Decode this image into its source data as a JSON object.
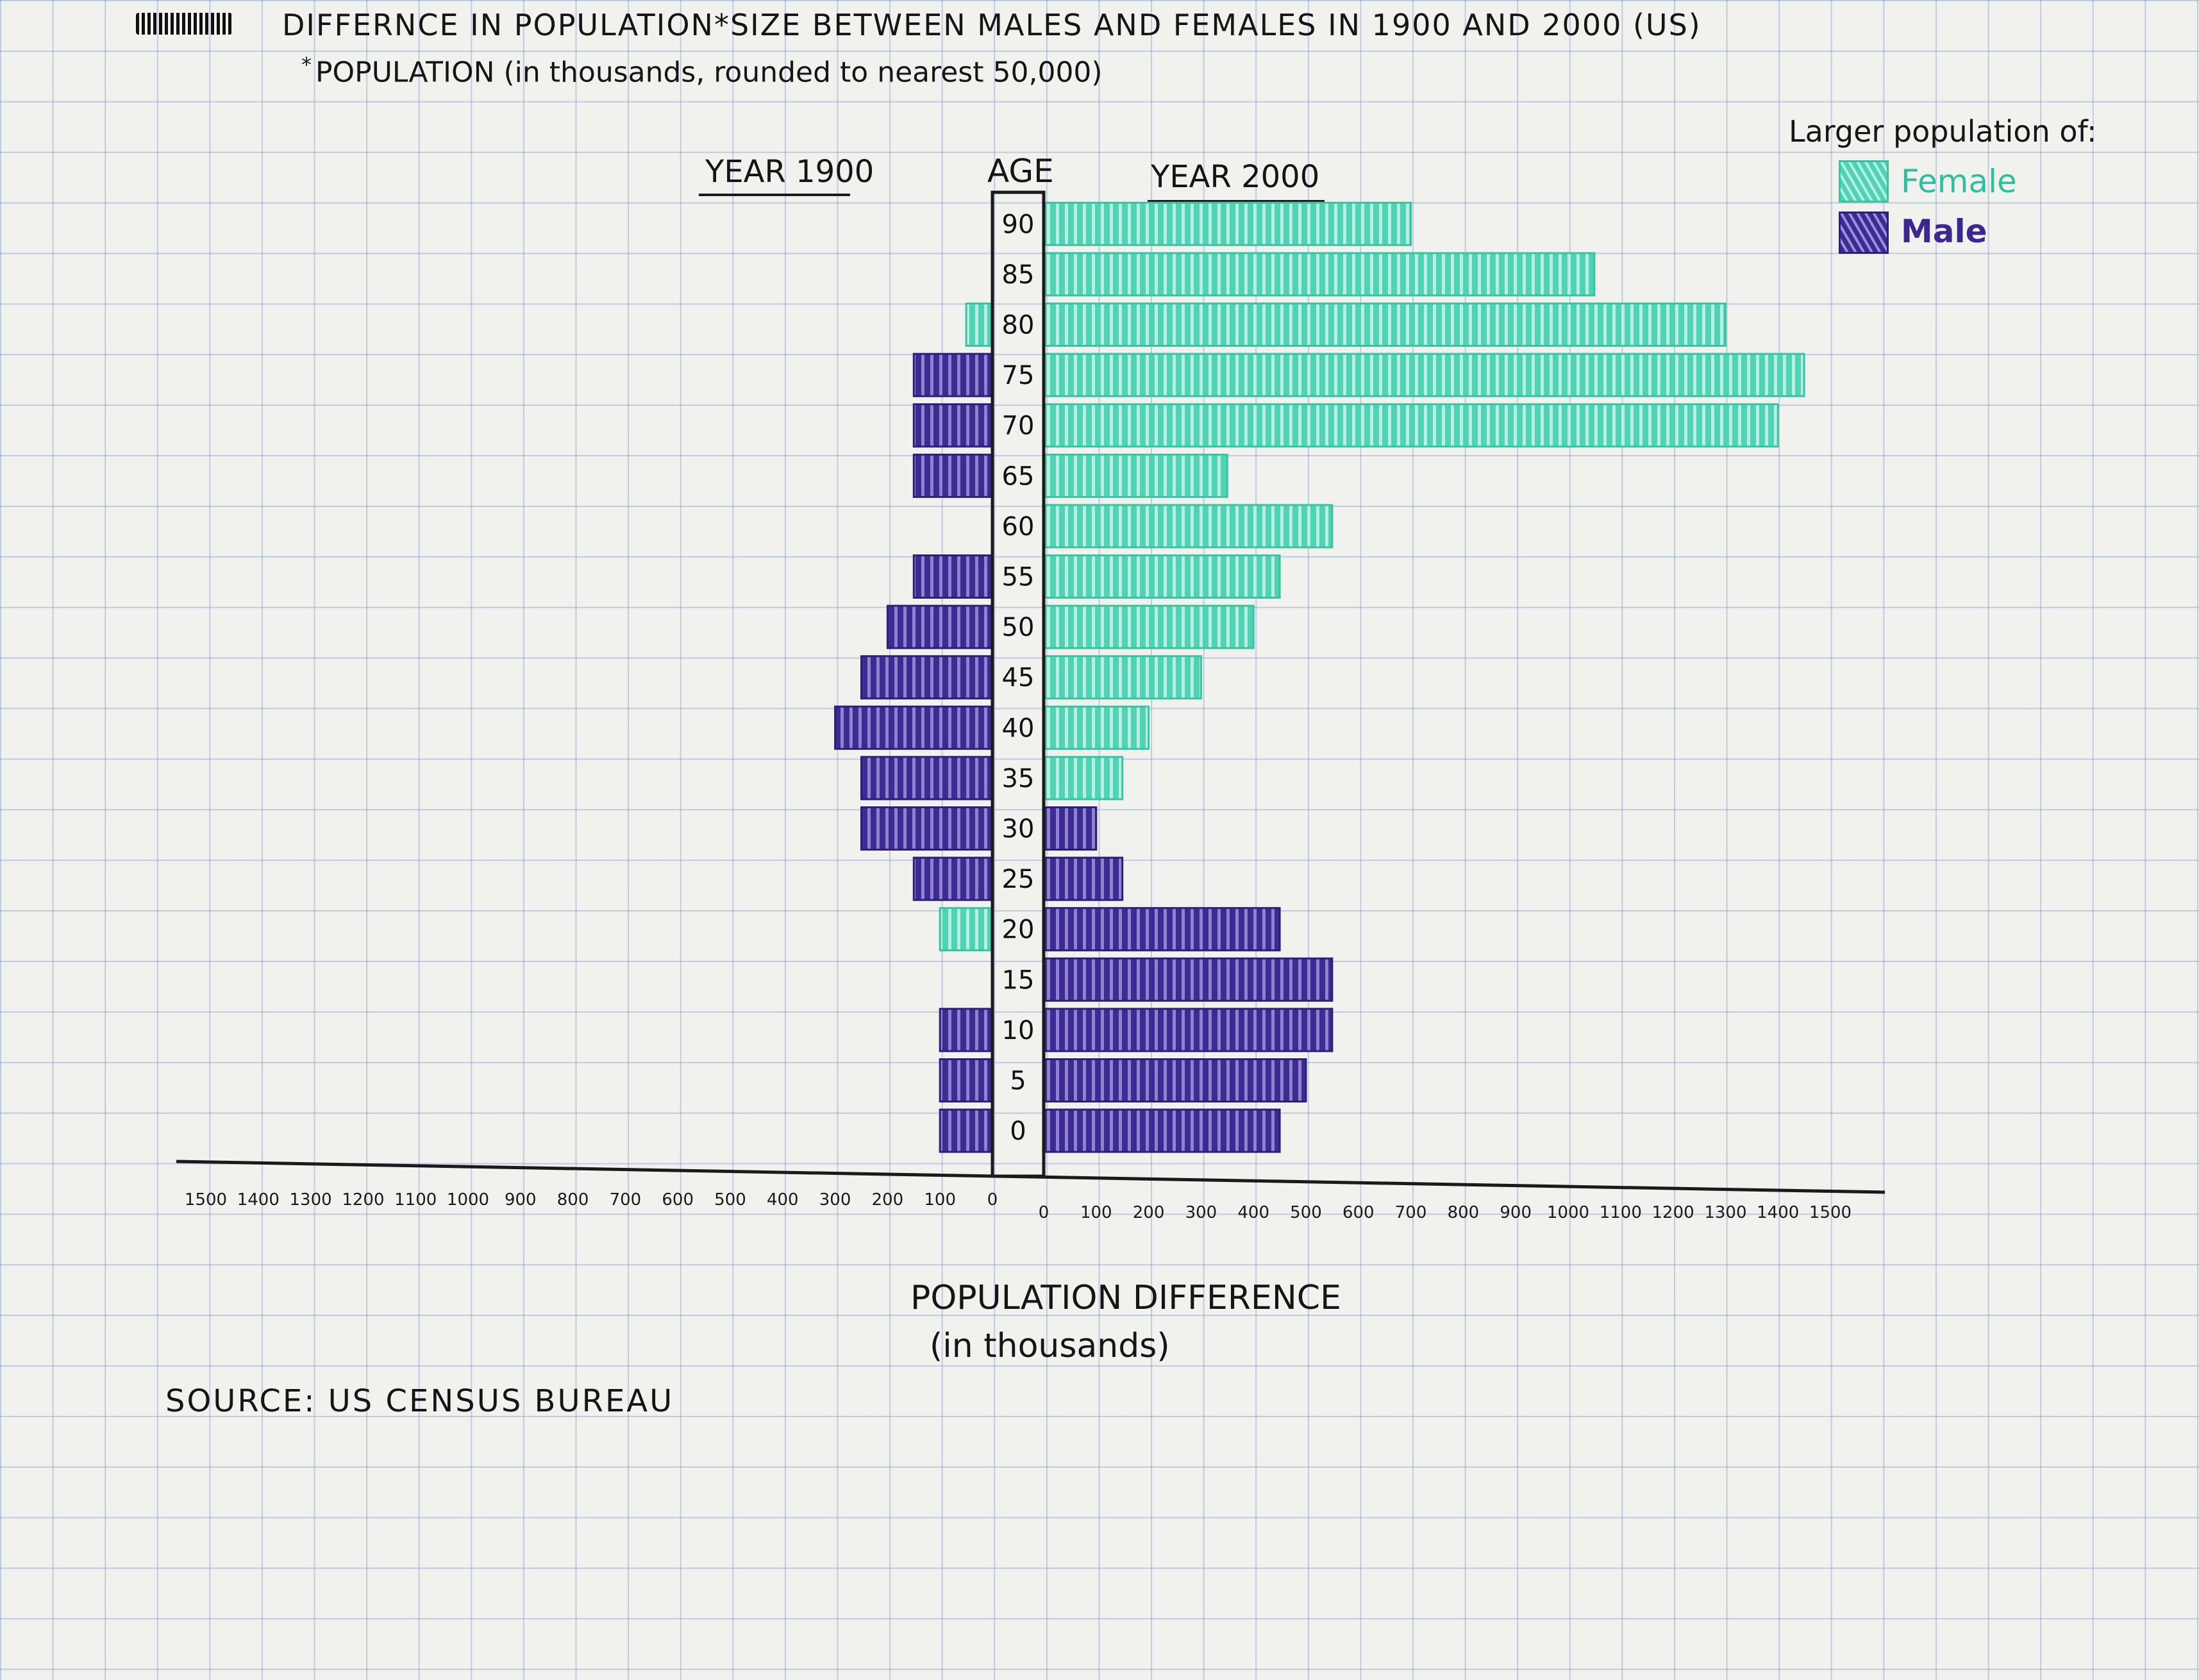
{
  "header": {
    "title": "DIFFERNCE IN POPULATION*SIZE BETWEEN MALES AND FEMALES IN 1900 AND 2000 (US)",
    "subtitle_marker": "*",
    "subtitle": "POPULATION (in thousands, rounded to nearest 50,000)"
  },
  "legend": {
    "title": "Larger population of:",
    "items": [
      {
        "label": "Female",
        "color": "#4fd3b4"
      },
      {
        "label": "Male",
        "color": "#3d2a92"
      }
    ]
  },
  "footer": {
    "xlabel_line1": "POPULATION DIFFERENCE",
    "xlabel_line2": "(in thousands)",
    "source": "SOURCE: US CENSUS BUREAU"
  },
  "chart_data": {
    "type": "bar",
    "orientation": "horizontal",
    "title": "DIFFERNCE IN POPULATION*SIZE BETWEEN MALES AND FEMALES IN 1900 AND 2000 (US)",
    "left_panel_label": "YEAR 1900",
    "right_panel_label": "YEAR 2000",
    "category_label": "AGE",
    "xlabel": "POPULATION DIFFERENCE (in thousands)",
    "categories": [
      "0",
      "5",
      "10",
      "15",
      "20",
      "25",
      "30",
      "35",
      "40",
      "45",
      "50",
      "55",
      "60",
      "65",
      "70",
      "75",
      "80",
      "85",
      "90"
    ],
    "xlim": [
      0,
      1500
    ],
    "x_ticks_left": [
      "1500",
      "1400",
      "1300",
      "1200",
      "1100",
      "1000",
      "900",
      "800",
      "700",
      "600",
      "500",
      "400",
      "300",
      "200",
      "100",
      "0"
    ],
    "x_ticks_right": [
      "0",
      "100",
      "200",
      "300",
      "400",
      "500",
      "600",
      "700",
      "800",
      "900",
      "1000",
      "1100",
      "1200",
      "1300",
      "1400",
      "1500"
    ],
    "series": [
      {
        "name": "YEAR 1900",
        "values": [
          100,
          100,
          100,
          0,
          100,
          150,
          250,
          250,
          300,
          250,
          200,
          150,
          0,
          150,
          150,
          150,
          50,
          0,
          0
        ],
        "larger": [
          "Male",
          "Male",
          "Male",
          "",
          "Female",
          "Male",
          "Male",
          "Male",
          "Male",
          "Male",
          "Male",
          "Male",
          "",
          "Male",
          "Male",
          "Male",
          "Female",
          "",
          ""
        ]
      },
      {
        "name": "YEAR 2000",
        "values": [
          450,
          500,
          550,
          550,
          450,
          150,
          100,
          150,
          200,
          300,
          400,
          450,
          550,
          350,
          1400,
          1450,
          1300,
          1050,
          700
        ],
        "larger": [
          "Male",
          "Male",
          "Male",
          "Male",
          "Male",
          "Male",
          "Male",
          "Female",
          "Female",
          "Female",
          "Female",
          "Female",
          "Female",
          "Female",
          "Female",
          "Female",
          "Female",
          "Female",
          "Female"
        ]
      }
    ]
  }
}
